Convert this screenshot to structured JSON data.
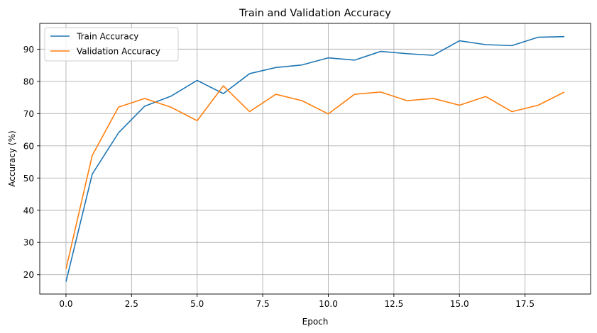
{
  "chart_data": {
    "type": "line",
    "title": "Train and Validation Accuracy",
    "xlabel": "Epoch",
    "ylabel": "Accuracy (%)",
    "xlim": [
      -1,
      20
    ],
    "ylim": [
      14,
      98
    ],
    "xticks": [
      0.0,
      2.5,
      5.0,
      7.5,
      10.0,
      12.5,
      15.0,
      17.5
    ],
    "xtick_labels": [
      "0.0",
      "2.5",
      "5.0",
      "7.5",
      "10.0",
      "12.5",
      "15.0",
      "17.5"
    ],
    "yticks": [
      20,
      30,
      40,
      50,
      60,
      70,
      80,
      90
    ],
    "ytick_labels": [
      "20",
      "30",
      "40",
      "50",
      "60",
      "70",
      "80",
      "90"
    ],
    "grid": true,
    "legend_position": "top-left",
    "x": [
      0,
      1,
      2,
      3,
      4,
      5,
      6,
      7,
      8,
      9,
      10,
      11,
      12,
      13,
      14,
      15,
      16,
      17,
      18,
      19
    ],
    "series": [
      {
        "name": "Train Accuracy",
        "color": "#1f77b4",
        "values": [
          17.8,
          51.2,
          64.0,
          72.3,
          75.4,
          80.3,
          76.2,
          82.4,
          84.3,
          85.1,
          87.3,
          86.6,
          89.3,
          88.6,
          88.1,
          92.6,
          91.4,
          91.1,
          93.7,
          93.9
        ]
      },
      {
        "name": "Validation Accuracy",
        "color": "#ff7f0e",
        "values": [
          21.8,
          57.0,
          72.0,
          74.7,
          72.0,
          67.8,
          78.6,
          70.6,
          76.0,
          74.0,
          69.9,
          76.0,
          76.7,
          74.0,
          74.7,
          72.6,
          75.3,
          70.6,
          72.6,
          76.7
        ]
      }
    ]
  }
}
